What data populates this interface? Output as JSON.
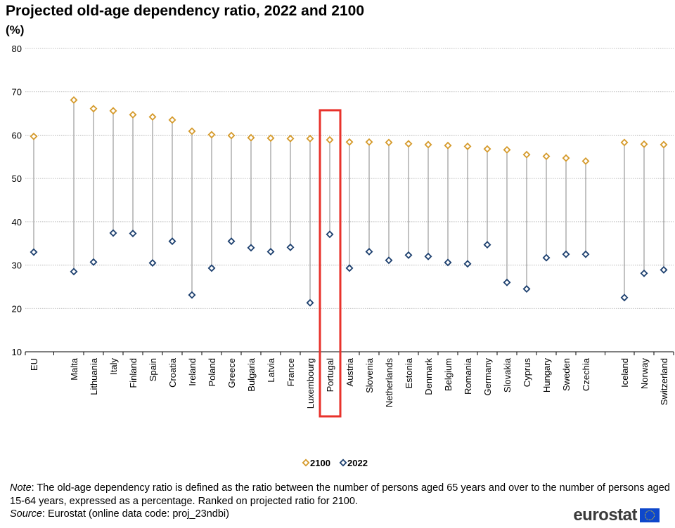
{
  "title": "Projected old-age dependency ratio, 2022 and 2100",
  "unit": "(%)",
  "chart_data": {
    "type": "scatter",
    "subtype": "dot-plot-with-connectors",
    "ylim": [
      10,
      80
    ],
    "yticks": [
      10,
      20,
      30,
      40,
      50,
      60,
      70,
      80
    ],
    "grid": true,
    "legend_position": "bottom-center",
    "highlighted_category": "Portugal",
    "highlight_color": "#e8322b",
    "categories": [
      "EU",
      "Malta",
      "Lithuania",
      "Italy",
      "Finland",
      "Spain",
      "Croatia",
      "Ireland",
      "Poland",
      "Greece",
      "Bulgaria",
      "Latvia",
      "France",
      "Luxembourg",
      "Portugal",
      "Austria",
      "Slovenia",
      "Netherlands",
      "Estonia",
      "Denmark",
      "Belgium",
      "Romania",
      "Germany",
      "Slovakia",
      "Cyprus",
      "Hungary",
      "Sweden",
      "Czechia",
      "Iceland",
      "Norway",
      "Switzerland"
    ],
    "series": [
      {
        "name": "2100",
        "color": "#d59a2b",
        "values": [
          59.7,
          68.1,
          66.1,
          65.6,
          64.7,
          64.2,
          63.5,
          60.9,
          60.1,
          59.9,
          59.4,
          59.3,
          59.2,
          59.2,
          58.9,
          58.4,
          58.4,
          58.3,
          58.0,
          57.8,
          57.6,
          57.4,
          56.8,
          56.6,
          55.5,
          55.1,
          54.7,
          54.0,
          58.3,
          57.9,
          57.8
        ]
      },
      {
        "name": "2022",
        "color": "#1c3f6e",
        "values": [
          33.0,
          28.5,
          30.7,
          37.4,
          37.3,
          30.5,
          35.5,
          23.1,
          29.3,
          35.5,
          34.0,
          33.1,
          34.1,
          21.3,
          37.1,
          29.3,
          33.1,
          31.1,
          32.3,
          32.0,
          30.6,
          30.3,
          34.7,
          26.0,
          24.5,
          31.7,
          32.5,
          32.5,
          22.5,
          28.1,
          28.9
        ]
      }
    ]
  },
  "note": {
    "note_label": "Note",
    "note_text": ": The old-age dependency ratio is defined as the ratio between the number of persons aged 65 years and over to the number of persons aged 15-64 years, expressed as a percentage. Ranked on projected ratio for 2100.",
    "source_label": "Source",
    "source_text": ": Eurostat (online data code: proj_23ndbi)"
  },
  "logo": {
    "text": "eurostat"
  }
}
